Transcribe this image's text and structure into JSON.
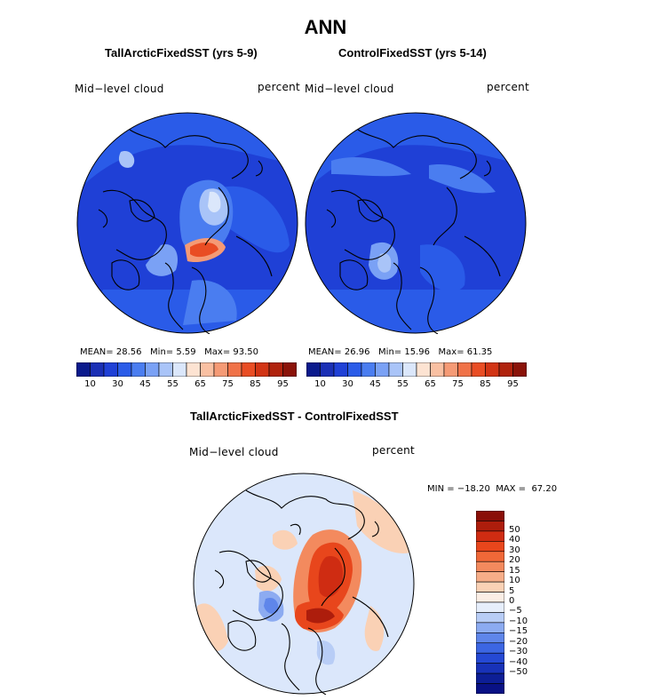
{
  "main_title": "ANN",
  "panels": [
    {
      "title": "TallArcticFixedSST (yrs 5-9)",
      "field": "Mid−level cloud",
      "units": "percent",
      "stats": {
        "mean_label": "MEAN=",
        "mean": "28.56",
        "min_label": "Min=",
        "min": "5.59",
        "max_label": "Max=",
        "max": "93.50"
      }
    },
    {
      "title": "ControlFixedSST (yrs 5-14)",
      "field": "Mid−level cloud",
      "units": "percent",
      "stats": {
        "mean_label": "MEAN=",
        "mean": "26.96",
        "min_label": "Min=",
        "min": "15.96",
        "max_label": "Max=",
        "max": "61.35"
      }
    }
  ],
  "colorbar_top": {
    "colors": [
      "#0a1a8c",
      "#1a2fb5",
      "#1f40d6",
      "#2a5be8",
      "#4a7df0",
      "#7aa1f5",
      "#a9c4f8",
      "#dbe7fb",
      "#fde3d2",
      "#f9c0a2",
      "#f59a75",
      "#f07248",
      "#e94d24",
      "#d23414",
      "#b0220c",
      "#8a1208"
    ],
    "ticks": [
      "10",
      "30",
      "45",
      "55",
      "65",
      "75",
      "85",
      "95"
    ]
  },
  "diff_panel": {
    "title": "TallArcticFixedSST - ControlFixedSST",
    "field": "Mid−level cloud",
    "units": "percent",
    "minmax": {
      "min_label": "MIN =",
      "min": "−18.20",
      "max_label": "MAX =",
      "max": "67.20"
    }
  },
  "colorbar_diff": {
    "colors": [
      "#8a0f08",
      "#ad1d0c",
      "#cf2c12",
      "#e8461c",
      "#f06838",
      "#f38a5e",
      "#f6ad88",
      "#fad1b5",
      "#fbeee5",
      "#e6eefb",
      "#b8cdf6",
      "#8cabf1",
      "#5f86ea",
      "#3c66e3",
      "#2549d4",
      "#1832b8",
      "#0d1e96",
      "#091185"
    ],
    "labels": [
      "50",
      "40",
      "30",
      "20",
      "15",
      "10",
      "5",
      "0",
      "−5",
      "−10",
      "−15",
      "−20",
      "−30",
      "−40",
      "−50"
    ]
  },
  "colors": {
    "land_line": "#000000",
    "ocean_top": "#1f40d6",
    "neutral": "#dbe7fb"
  }
}
